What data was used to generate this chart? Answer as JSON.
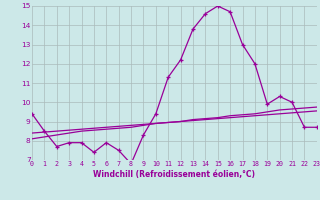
{
  "x": [
    0,
    1,
    2,
    3,
    4,
    5,
    6,
    7,
    8,
    9,
    10,
    11,
    12,
    13,
    14,
    15,
    16,
    17,
    18,
    19,
    20,
    21,
    22,
    23
  ],
  "windchill": [
    9.4,
    8.5,
    7.7,
    7.9,
    7.9,
    7.4,
    7.9,
    7.5,
    6.8,
    8.3,
    9.4,
    11.3,
    12.2,
    13.8,
    14.6,
    15.0,
    14.7,
    13.0,
    12.0,
    9.9,
    10.3,
    10.0,
    8.7,
    8.7
  ],
  "line2": [
    8.4,
    8.45,
    8.5,
    8.55,
    8.6,
    8.65,
    8.7,
    8.75,
    8.8,
    8.85,
    8.9,
    8.95,
    9.0,
    9.05,
    9.1,
    9.15,
    9.2,
    9.25,
    9.3,
    9.35,
    9.4,
    9.45,
    9.5,
    9.55
  ],
  "line3": [
    8.1,
    8.2,
    8.3,
    8.4,
    8.5,
    8.55,
    8.6,
    8.65,
    8.7,
    8.8,
    8.9,
    8.95,
    9.0,
    9.1,
    9.15,
    9.2,
    9.3,
    9.35,
    9.4,
    9.5,
    9.6,
    9.65,
    9.7,
    9.75
  ],
  "ylim": [
    7,
    15
  ],
  "yticks": [
    7,
    8,
    9,
    10,
    11,
    12,
    13,
    14,
    15
  ],
  "xticks": [
    0,
    1,
    2,
    3,
    4,
    5,
    6,
    7,
    8,
    9,
    10,
    11,
    12,
    13,
    14,
    15,
    16,
    17,
    18,
    19,
    20,
    21,
    22,
    23
  ],
  "line_color": "#990099",
  "bg_color": "#cce8e8",
  "grid_color": "#aabbbb",
  "xlabel": "Windchill (Refroidissement éolien,°C)",
  "xlabel_color": "#990099",
  "tick_color": "#990099",
  "tick_fontsize": 4.8,
  "xlabel_fontsize": 5.5
}
